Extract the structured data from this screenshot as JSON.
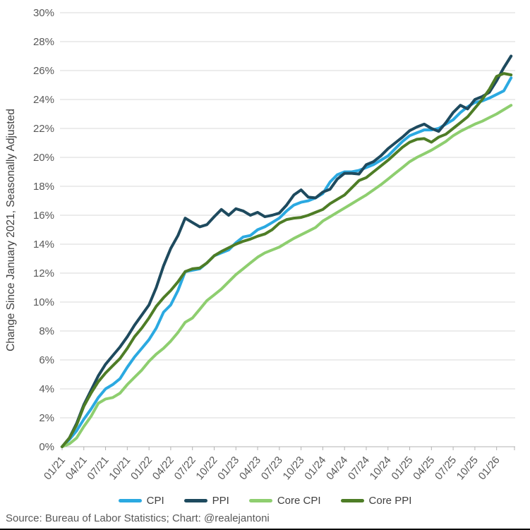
{
  "chart_data": {
    "type": "line",
    "title": "",
    "xlabel": "",
    "ylabel": "Change Since January 2021, Seasonally Adjusted",
    "ylim": [
      0,
      30
    ],
    "ytick_step": 2,
    "ytick_suffix": "%",
    "grid": true,
    "legend_position": "bottom",
    "x_tick_interval": 3,
    "x_tick_labels": [
      "01/21",
      "04/21",
      "07/21",
      "10/21",
      "01/22",
      "04/22",
      "07/22",
      "10/22",
      "01/23",
      "04/23",
      "07/23",
      "10/23",
      "01/24",
      "04/24",
      "07/24",
      "10/24",
      "01/25",
      "04/25",
      "07/25",
      "10/25",
      "01/26"
    ],
    "n_points": 63,
    "series": [
      {
        "name": "CPI",
        "color": "#2BA9E1",
        "values": [
          0,
          0.5,
          1.1,
          1.9,
          2.6,
          3.4,
          4,
          4.3,
          4.7,
          5.5,
          6.2,
          6.8,
          7.4,
          8.2,
          9.3,
          9.8,
          10.8,
          12.1,
          12.2,
          12.3,
          12.7,
          13.2,
          13.4,
          13.6,
          14.1,
          14.5,
          14.6,
          15,
          15.2,
          15.5,
          15.8,
          16.3,
          16.7,
          16.9,
          17,
          17.2,
          17.5,
          18.3,
          18.8,
          19,
          19,
          19.1,
          19.3,
          19.5,
          19.8,
          20.1,
          20.6,
          21.1,
          21.5,
          21.7,
          21.9,
          21.9,
          22,
          22.3,
          22.6,
          23.1,
          23.5,
          23.8,
          23.9,
          24.1,
          24.35,
          24.6,
          25.5
        ]
      },
      {
        "name": "PPI",
        "color": "#1E4A5E",
        "values": [
          0,
          0.6,
          1.6,
          2.9,
          3.9,
          4.9,
          5.7,
          6.3,
          6.9,
          7.6,
          8.4,
          9.1,
          9.8,
          11,
          12.5,
          13.7,
          14.6,
          15.8,
          15.5,
          15.2,
          15.35,
          15.9,
          16.4,
          16,
          16.45,
          16.3,
          16,
          16.2,
          15.9,
          16,
          16.15,
          16.7,
          17.4,
          17.75,
          17.25,
          17.2,
          17.6,
          17.8,
          18.5,
          18.9,
          18.9,
          18.85,
          19.5,
          19.7,
          20.1,
          20.6,
          21,
          21.4,
          21.85,
          22.1,
          22.3,
          22,
          21.8,
          22.4,
          23.1,
          23.6,
          23.35,
          24,
          24.2,
          24.5,
          25.3,
          26.2,
          27
        ]
      },
      {
        "name": "Core CPI",
        "color": "#8ECE6F",
        "values": [
          0,
          0.2,
          0.6,
          1.4,
          2.1,
          3,
          3.3,
          3.4,
          3.7,
          4.3,
          4.8,
          5.3,
          5.9,
          6.4,
          6.8,
          7.3,
          7.9,
          8.6,
          8.9,
          9.5,
          10.1,
          10.5,
          10.9,
          11.4,
          11.9,
          12.3,
          12.7,
          13.1,
          13.4,
          13.6,
          13.8,
          14.1,
          14.4,
          14.65,
          14.9,
          15.15,
          15.6,
          15.9,
          16.2,
          16.5,
          16.8,
          17.1,
          17.4,
          17.75,
          18.1,
          18.5,
          18.9,
          19.3,
          19.7,
          20,
          20.25,
          20.5,
          20.8,
          21.1,
          21.5,
          21.8,
          22.05,
          22.3,
          22.5,
          22.75,
          23,
          23.3,
          23.6
        ]
      },
      {
        "name": "Core PPI",
        "color": "#4E7D26",
        "values": [
          0,
          0.6,
          1.5,
          2.8,
          3.7,
          4.5,
          5.1,
          5.6,
          6.1,
          6.8,
          7.6,
          8.2,
          8.9,
          9.7,
          10.3,
          10.8,
          11.4,
          12.1,
          12.3,
          12.35,
          12.7,
          13.2,
          13.5,
          13.75,
          14,
          14.2,
          14.35,
          14.55,
          14.7,
          15,
          15.45,
          15.7,
          15.8,
          15.85,
          16,
          16.2,
          16.4,
          16.8,
          17.1,
          17.4,
          17.9,
          18.4,
          18.6,
          19,
          19.4,
          19.8,
          20.25,
          20.7,
          21.05,
          21.25,
          21.3,
          21.05,
          21.4,
          21.6,
          22,
          22.4,
          22.8,
          23.4,
          24,
          24.7,
          25.6,
          25.8,
          25.7
        ]
      }
    ],
    "colors": {
      "gridline": "#d9d9d9",
      "axis": "#b3b3b3",
      "tick_label": "#595959",
      "axis_title": "#404040"
    }
  },
  "footer": {
    "source": "Source: Bureau of Labor Statistics; Chart: @realejantoni"
  }
}
